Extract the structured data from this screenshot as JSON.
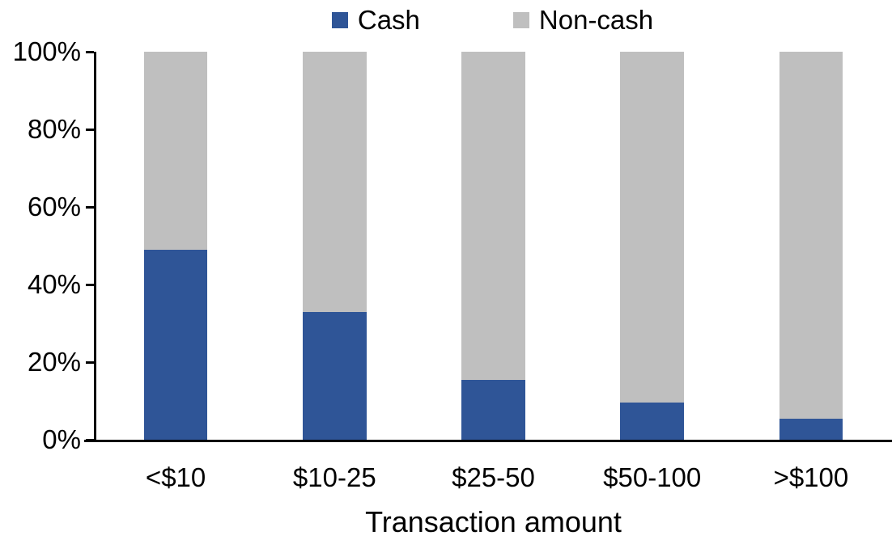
{
  "chart_data": {
    "type": "bar",
    "stacked": true,
    "percent_stacked": true,
    "title": "",
    "xlabel": "Transaction amount",
    "ylabel": "",
    "ylim": [
      0,
      100
    ],
    "grid": false,
    "legend_position": "top-center",
    "categories": [
      "<$10",
      "$10-25",
      "$25-50",
      "$50-100",
      ">$100"
    ],
    "series": [
      {
        "name": "Cash",
        "color": "#2F5597",
        "values": [
          49,
          33,
          15.5,
          9.5,
          5.5
        ]
      },
      {
        "name": "Non-cash",
        "color": "#BFBFBF",
        "values": [
          51,
          67,
          84.5,
          90.5,
          94.5
        ]
      }
    ],
    "yticks": [
      {
        "value": 0,
        "label": "0%"
      },
      {
        "value": 20,
        "label": "20%"
      },
      {
        "value": 40,
        "label": "40%"
      },
      {
        "value": 60,
        "label": "60%"
      },
      {
        "value": 80,
        "label": "80%"
      },
      {
        "value": 100,
        "label": "100%"
      }
    ]
  },
  "colors": {
    "axis": "#000000",
    "text": "#000000",
    "background": "#FFFFFF"
  }
}
